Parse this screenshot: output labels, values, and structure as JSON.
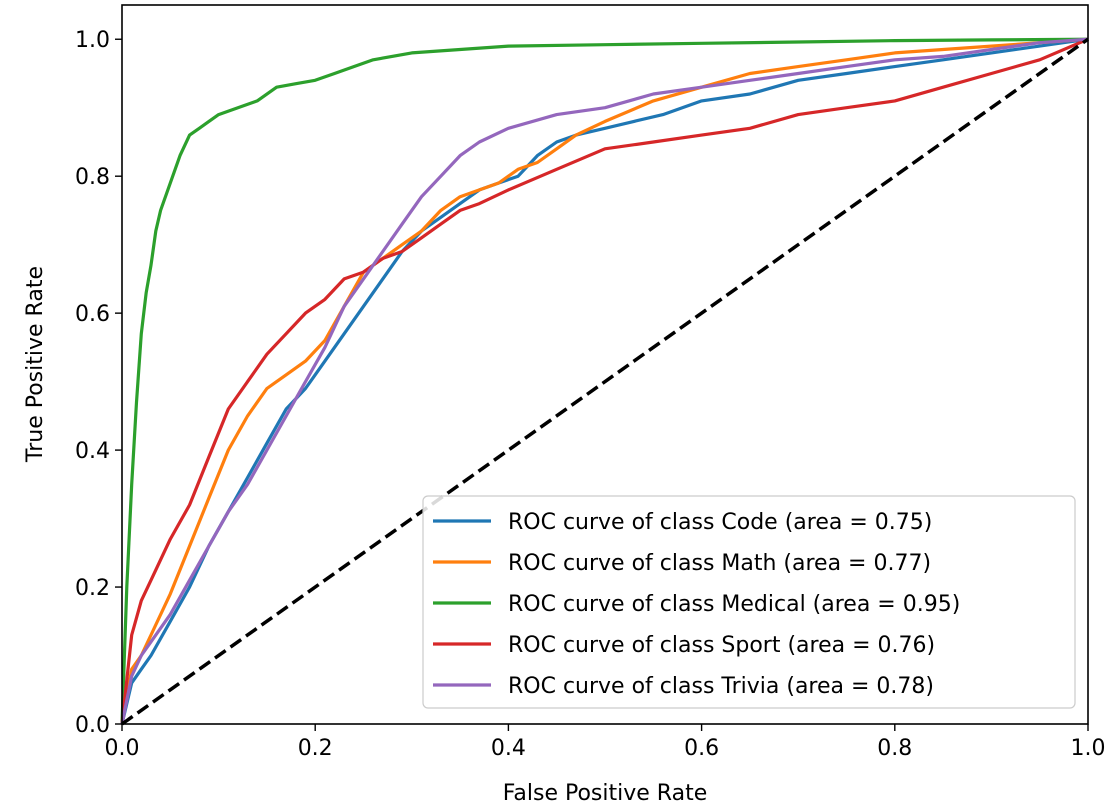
{
  "chart_data": {
    "type": "line",
    "title": "",
    "xlabel": "False Positive Rate",
    "ylabel": "True Positive Rate",
    "xlim": [
      0.0,
      1.0
    ],
    "ylim": [
      0.0,
      1.05
    ],
    "xticks": [
      "0.0",
      "0.2",
      "0.4",
      "0.6",
      "0.8",
      "1.0"
    ],
    "yticks": [
      "0.0",
      "0.2",
      "0.4",
      "0.6",
      "0.8",
      "1.0"
    ],
    "legend_position": "lower-right",
    "grid": false,
    "series": [
      {
        "name": "ROC curve of class Code (area = 0.75)",
        "color": "#1f77b4",
        "x": [
          0,
          0.01,
          0.02,
          0.03,
          0.05,
          0.07,
          0.09,
          0.11,
          0.13,
          0.15,
          0.17,
          0.19,
          0.21,
          0.23,
          0.25,
          0.27,
          0.29,
          0.31,
          0.33,
          0.35,
          0.37,
          0.39,
          0.41,
          0.43,
          0.45,
          0.47,
          0.5,
          0.53,
          0.56,
          0.6,
          0.65,
          0.7,
          0.75,
          0.8,
          0.85,
          0.9,
          0.95,
          1.0
        ],
        "y": [
          0,
          0.06,
          0.08,
          0.1,
          0.15,
          0.2,
          0.26,
          0.31,
          0.36,
          0.41,
          0.46,
          0.49,
          0.53,
          0.57,
          0.61,
          0.65,
          0.69,
          0.72,
          0.74,
          0.76,
          0.78,
          0.79,
          0.8,
          0.83,
          0.85,
          0.86,
          0.87,
          0.88,
          0.89,
          0.91,
          0.92,
          0.94,
          0.95,
          0.96,
          0.97,
          0.98,
          0.99,
          1.0
        ]
      },
      {
        "name": "ROC curve of class Math (area = 0.77)",
        "color": "#ff7f0e",
        "x": [
          0,
          0.01,
          0.02,
          0.03,
          0.05,
          0.07,
          0.09,
          0.11,
          0.13,
          0.15,
          0.17,
          0.19,
          0.21,
          0.23,
          0.25,
          0.27,
          0.29,
          0.31,
          0.33,
          0.35,
          0.37,
          0.39,
          0.41,
          0.43,
          0.45,
          0.47,
          0.5,
          0.55,
          0.6,
          0.65,
          0.7,
          0.75,
          0.8,
          0.85,
          0.9,
          0.95,
          1.0
        ],
        "y": [
          0,
          0.08,
          0.1,
          0.13,
          0.19,
          0.26,
          0.33,
          0.4,
          0.45,
          0.49,
          0.51,
          0.53,
          0.56,
          0.61,
          0.66,
          0.68,
          0.7,
          0.72,
          0.75,
          0.77,
          0.78,
          0.79,
          0.81,
          0.82,
          0.84,
          0.86,
          0.88,
          0.91,
          0.93,
          0.95,
          0.96,
          0.97,
          0.98,
          0.985,
          0.99,
          0.995,
          1.0
        ]
      },
      {
        "name": "ROC curve of class Medical (area = 0.95)",
        "color": "#2ca02c",
        "x": [
          0,
          0.005,
          0.01,
          0.015,
          0.02,
          0.025,
          0.03,
          0.035,
          0.04,
          0.05,
          0.06,
          0.07,
          0.08,
          0.09,
          0.1,
          0.12,
          0.14,
          0.16,
          0.18,
          0.2,
          0.22,
          0.24,
          0.26,
          0.3,
          0.35,
          0.4,
          0.5,
          0.6,
          0.7,
          0.8,
          0.9,
          1.0
        ],
        "y": [
          0,
          0.2,
          0.35,
          0.47,
          0.57,
          0.63,
          0.67,
          0.72,
          0.75,
          0.79,
          0.83,
          0.86,
          0.87,
          0.88,
          0.89,
          0.9,
          0.91,
          0.93,
          0.935,
          0.94,
          0.95,
          0.96,
          0.97,
          0.98,
          0.985,
          0.99,
          0.992,
          0.994,
          0.996,
          0.998,
          0.999,
          1.0
        ]
      },
      {
        "name": "ROC curve of class Sport (area = 0.76)",
        "color": "#d62728",
        "x": [
          0,
          0.01,
          0.02,
          0.03,
          0.05,
          0.07,
          0.09,
          0.11,
          0.13,
          0.15,
          0.17,
          0.19,
          0.21,
          0.23,
          0.25,
          0.27,
          0.29,
          0.31,
          0.33,
          0.35,
          0.37,
          0.4,
          0.45,
          0.5,
          0.55,
          0.6,
          0.65,
          0.7,
          0.75,
          0.8,
          0.85,
          0.9,
          0.95,
          1.0
        ],
        "y": [
          0,
          0.13,
          0.18,
          0.21,
          0.27,
          0.32,
          0.39,
          0.46,
          0.5,
          0.54,
          0.57,
          0.6,
          0.62,
          0.65,
          0.66,
          0.68,
          0.69,
          0.71,
          0.73,
          0.75,
          0.76,
          0.78,
          0.81,
          0.84,
          0.85,
          0.86,
          0.87,
          0.89,
          0.9,
          0.91,
          0.93,
          0.95,
          0.97,
          1.0
        ]
      },
      {
        "name": "ROC curve of class Trivia (area = 0.78)",
        "color": "#9467bd",
        "x": [
          0,
          0.01,
          0.02,
          0.03,
          0.05,
          0.07,
          0.09,
          0.11,
          0.13,
          0.15,
          0.17,
          0.19,
          0.21,
          0.23,
          0.25,
          0.27,
          0.29,
          0.31,
          0.33,
          0.35,
          0.37,
          0.4,
          0.45,
          0.5,
          0.55,
          0.6,
          0.65,
          0.7,
          0.75,
          0.8,
          0.85,
          0.9,
          0.95,
          1.0
        ],
        "y": [
          0,
          0.07,
          0.1,
          0.12,
          0.16,
          0.21,
          0.26,
          0.31,
          0.35,
          0.4,
          0.45,
          0.5,
          0.55,
          0.61,
          0.65,
          0.69,
          0.73,
          0.77,
          0.8,
          0.83,
          0.85,
          0.87,
          0.89,
          0.9,
          0.92,
          0.93,
          0.94,
          0.95,
          0.96,
          0.97,
          0.975,
          0.985,
          0.995,
          1.0
        ]
      }
    ],
    "reference_line": {
      "x": [
        0,
        1
      ],
      "y": [
        0,
        1
      ],
      "color": "#000000",
      "style": "dashed"
    }
  }
}
